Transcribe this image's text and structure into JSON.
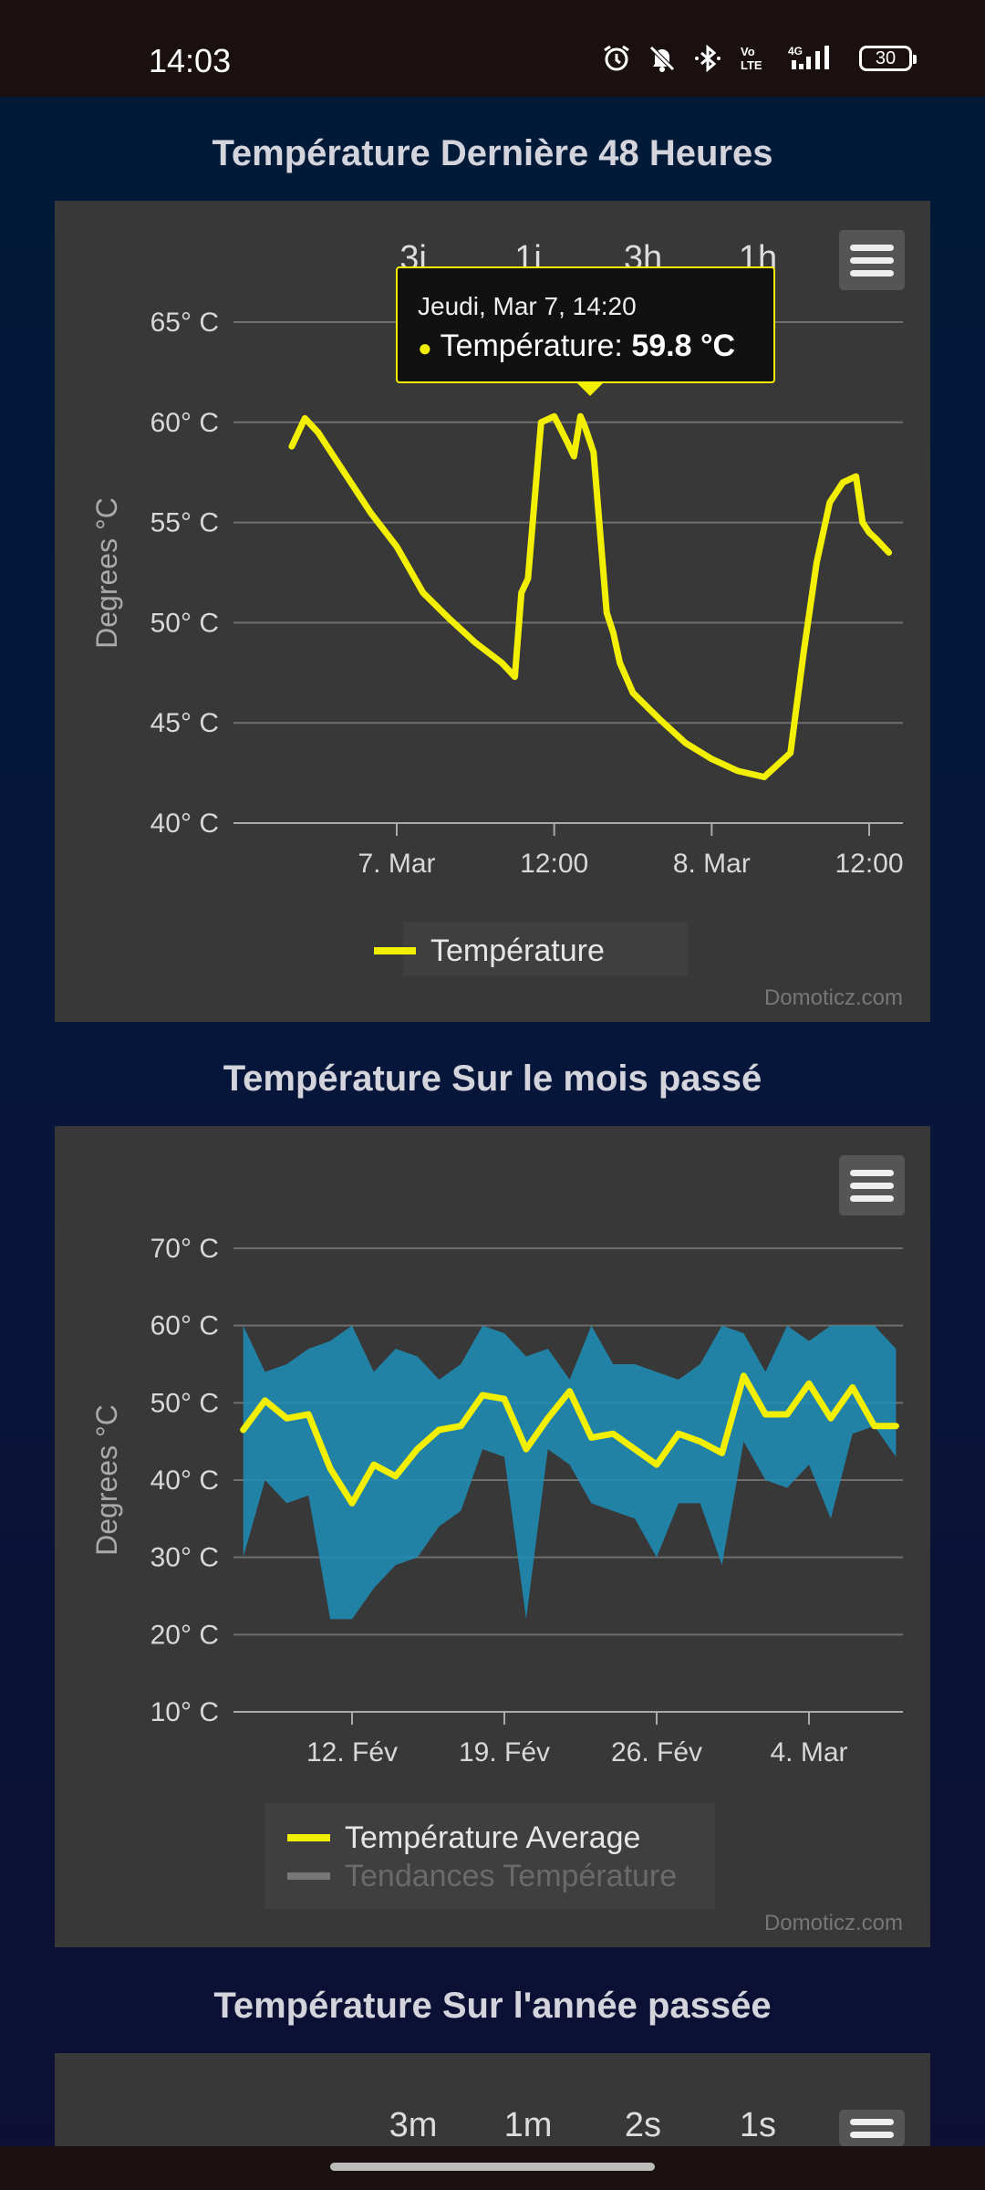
{
  "status": {
    "time": "14:03",
    "battery": "30"
  },
  "icons": {
    "menu": "hamburger-menu-icon"
  },
  "colors": {
    "line": "#f2f000",
    "band": "#1f8fb8",
    "trend": "#777777"
  },
  "chart_data": [
    {
      "type": "line",
      "title": "Température Dernière 48 Heures",
      "ylabel": "Degrees °C",
      "ylim": [
        40,
        65
      ],
      "yticks": [
        "65° C",
        "60° C",
        "55° C",
        "50° C",
        "45° C",
        "40° C"
      ],
      "xticks": [
        "7. Mar",
        "12:00",
        "8. Mar",
        "12:00"
      ],
      "zoom_buttons": [
        "3j",
        "1j",
        "3h",
        "1h"
      ],
      "legend": [
        "Température"
      ],
      "credit": "Domoticz.com",
      "tooltip": {
        "date": "Jeudi, Mar 7, 14:20",
        "series": "Température:",
        "value": "59.8 °C"
      },
      "series": [
        {
          "name": "Température",
          "x": [
            "Mar 6 16:00",
            "Mar 6 17:00",
            "Mar 6 18:00",
            "Mar 6 20:00",
            "Mar 6 22:00",
            "Mar 7 00:00",
            "Mar 7 02:00",
            "Mar 7 04:00",
            "Mar 7 06:00",
            "Mar 7 08:00",
            "Mar 7 09:00",
            "Mar 7 09:30",
            "Mar 7 10:00",
            "Mar 7 11:00",
            "Mar 7 12:00",
            "Mar 7 13:00",
            "Mar 7 13:30",
            "Mar 7 14:00",
            "Mar 7 14:20",
            "Mar 7 15:00",
            "Mar 7 16:00",
            "Mar 7 16:30",
            "Mar 7 17:00",
            "Mar 7 18:00",
            "Mar 7 20:00",
            "Mar 7 22:00",
            "Mar 8 00:00",
            "Mar 8 02:00",
            "Mar 8 04:00",
            "Mar 8 06:00",
            "Mar 8 07:00",
            "Mar 8 08:00",
            "Mar 8 09:00",
            "Mar 8 10:00",
            "Mar 8 11:00",
            "Mar 8 11:30",
            "Mar 8 12:00",
            "Mar 8 12:30",
            "Mar 8 13:30"
          ],
          "values": [
            58.8,
            60.2,
            59.5,
            57.5,
            55.5,
            53.8,
            51.5,
            50.2,
            49.0,
            48.0,
            47.3,
            51.5,
            52.2,
            60.0,
            60.3,
            59.0,
            58.3,
            60.3,
            59.8,
            58.5,
            50.5,
            49.5,
            48.0,
            46.5,
            45.2,
            44.0,
            43.2,
            42.6,
            42.3,
            43.5,
            48.5,
            53.0,
            56.0,
            57.0,
            57.3,
            55.0,
            54.5,
            54.2,
            53.5
          ]
        }
      ]
    },
    {
      "type": "area",
      "title": "Température Sur le mois passé",
      "ylabel": "Degrees °C",
      "ylim": [
        10,
        70
      ],
      "yticks": [
        "70° C",
        "60° C",
        "50° C",
        "40° C",
        "30° C",
        "20° C",
        "10° C"
      ],
      "xticks": [
        "12. Fév",
        "19. Fév",
        "26. Fév",
        "4. Mar"
      ],
      "legend": [
        "Température Average",
        "Tendances Température"
      ],
      "credit": "Domoticz.com",
      "series": [
        {
          "name": "Température Average",
          "x": [
            "Feb 7",
            "Feb 8",
            "Feb 9",
            "Feb 10",
            "Feb 11",
            "Feb 12",
            "Feb 13",
            "Feb 14",
            "Feb 15",
            "Feb 16",
            "Feb 17",
            "Feb 18",
            "Feb 19",
            "Feb 20",
            "Feb 21",
            "Feb 22",
            "Feb 23",
            "Feb 24",
            "Feb 25",
            "Feb 26",
            "Feb 27",
            "Feb 28",
            "Feb 29",
            "Mar 1",
            "Mar 2",
            "Mar 3",
            "Mar 4",
            "Mar 5",
            "Mar 6",
            "Mar 7",
            "Mar 8"
          ],
          "values": [
            46.5,
            50.3,
            48.0,
            48.5,
            41.5,
            37.0,
            42.0,
            40.5,
            44.0,
            46.5,
            47.0,
            51.0,
            50.5,
            44.0,
            48.0,
            51.5,
            45.5,
            46.0,
            44.0,
            42.0,
            46.0,
            45.0,
            43.5,
            53.5,
            48.5,
            48.5,
            52.5,
            48.0,
            52.0,
            47.0,
            47.0
          ]
        },
        {
          "name": "Température Range",
          "x": [
            "Feb 7",
            "Feb 8",
            "Feb 9",
            "Feb 10",
            "Feb 11",
            "Feb 12",
            "Feb 13",
            "Feb 14",
            "Feb 15",
            "Feb 16",
            "Feb 17",
            "Feb 18",
            "Feb 19",
            "Feb 20",
            "Feb 21",
            "Feb 22",
            "Feb 23",
            "Feb 24",
            "Feb 25",
            "Feb 26",
            "Feb 27",
            "Feb 28",
            "Feb 29",
            "Mar 1",
            "Mar 2",
            "Mar 3",
            "Mar 4",
            "Mar 5",
            "Mar 6",
            "Mar 7",
            "Mar 8"
          ],
          "low": [
            30,
            40,
            37,
            38,
            22,
            22,
            26,
            29,
            30,
            34,
            36,
            44,
            43,
            22,
            44,
            42,
            37,
            36,
            35,
            30,
            37,
            37,
            29,
            45,
            40,
            39,
            42,
            35,
            46,
            47,
            43
          ],
          "high": [
            60,
            54,
            55,
            57,
            58,
            60,
            54,
            57,
            56,
            53,
            55,
            60,
            59,
            56,
            57,
            53,
            60,
            55,
            55,
            54,
            53,
            55,
            60,
            59,
            54,
            60,
            58,
            60,
            60,
            60,
            57
          ]
        }
      ]
    },
    {
      "type": "line",
      "title": "Température Sur l'année passée",
      "zoom_buttons": [
        "3m",
        "1m",
        "2s",
        "1s"
      ]
    }
  ]
}
